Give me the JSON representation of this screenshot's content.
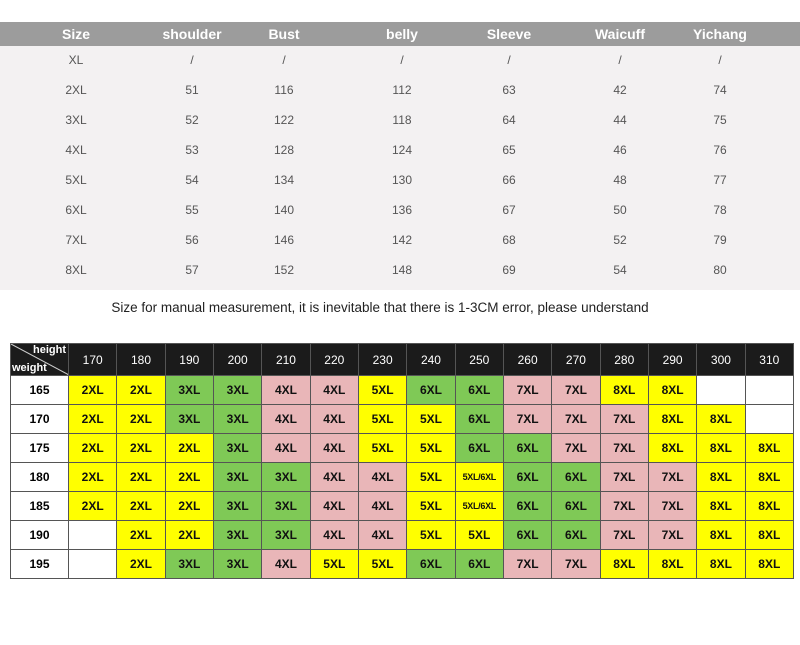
{
  "size_table": {
    "headers": [
      "Size",
      "shoulder",
      "Bust",
      "belly",
      "Sleeve",
      "Waicuff",
      "Yichang"
    ],
    "rows": [
      [
        "XL",
        "/",
        "/",
        "/",
        "/",
        "/",
        "/"
      ],
      [
        "2XL",
        "51",
        "116",
        "112",
        "63",
        "42",
        "74"
      ],
      [
        "3XL",
        "52",
        "122",
        "118",
        "64",
        "44",
        "75"
      ],
      [
        "4XL",
        "53",
        "128",
        "124",
        "65",
        "46",
        "76"
      ],
      [
        "5XL",
        "54",
        "134",
        "130",
        "66",
        "48",
        "77"
      ],
      [
        "6XL",
        "55",
        "140",
        "136",
        "67",
        "50",
        "78"
      ],
      [
        "7XL",
        "56",
        "146",
        "142",
        "68",
        "52",
        "79"
      ],
      [
        "8XL",
        "57",
        "152",
        "148",
        "69",
        "54",
        "80"
      ]
    ]
  },
  "note": "Size for manual measurement, it is inevitable that there is 1-3CM error, please understand",
  "recommendation": {
    "corner_top": "height",
    "corner_bottom": "weight",
    "columns": [
      "170",
      "180",
      "190",
      "200",
      "210",
      "220",
      "230",
      "240",
      "250",
      "260",
      "270",
      "280",
      "290",
      "300",
      "310"
    ],
    "colors": {
      "yellow": "#ffff00",
      "green": "#7fc956",
      "pink": "#e9b6b8",
      "empty": "#ffffff"
    },
    "rows": [
      {
        "height": "165",
        "cells": [
          {
            "v": "2XL",
            "c": "yellow"
          },
          {
            "v": "2XL",
            "c": "yellow"
          },
          {
            "v": "3XL",
            "c": "green"
          },
          {
            "v": "3XL",
            "c": "green"
          },
          {
            "v": "4XL",
            "c": "pink"
          },
          {
            "v": "4XL",
            "c": "pink"
          },
          {
            "v": "5XL",
            "c": "yellow"
          },
          {
            "v": "6XL",
            "c": "green"
          },
          {
            "v": "6XL",
            "c": "green"
          },
          {
            "v": "7XL",
            "c": "pink"
          },
          {
            "v": "7XL",
            "c": "pink"
          },
          {
            "v": "8XL",
            "c": "yellow"
          },
          {
            "v": "8XL",
            "c": "yellow"
          },
          {
            "v": "",
            "c": "empty"
          },
          {
            "v": "",
            "c": "empty"
          }
        ]
      },
      {
        "height": "170",
        "cells": [
          {
            "v": "2XL",
            "c": "yellow"
          },
          {
            "v": "2XL",
            "c": "yellow"
          },
          {
            "v": "3XL",
            "c": "green"
          },
          {
            "v": "3XL",
            "c": "green"
          },
          {
            "v": "4XL",
            "c": "pink"
          },
          {
            "v": "4XL",
            "c": "pink"
          },
          {
            "v": "5XL",
            "c": "yellow"
          },
          {
            "v": "5XL",
            "c": "yellow"
          },
          {
            "v": "6XL",
            "c": "green"
          },
          {
            "v": "7XL",
            "c": "pink"
          },
          {
            "v": "7XL",
            "c": "pink"
          },
          {
            "v": "7XL",
            "c": "pink"
          },
          {
            "v": "8XL",
            "c": "yellow"
          },
          {
            "v": "8XL",
            "c": "yellow"
          },
          {
            "v": "",
            "c": "empty"
          }
        ]
      },
      {
        "height": "175",
        "cells": [
          {
            "v": "2XL",
            "c": "yellow"
          },
          {
            "v": "2XL",
            "c": "yellow"
          },
          {
            "v": "2XL",
            "c": "yellow"
          },
          {
            "v": "3XL",
            "c": "green"
          },
          {
            "v": "4XL",
            "c": "pink"
          },
          {
            "v": "4XL",
            "c": "pink"
          },
          {
            "v": "5XL",
            "c": "yellow"
          },
          {
            "v": "5XL",
            "c": "yellow"
          },
          {
            "v": "6XL",
            "c": "green"
          },
          {
            "v": "6XL",
            "c": "green"
          },
          {
            "v": "7XL",
            "c": "pink"
          },
          {
            "v": "7XL",
            "c": "pink"
          },
          {
            "v": "8XL",
            "c": "yellow"
          },
          {
            "v": "8XL",
            "c": "yellow"
          },
          {
            "v": "8XL",
            "c": "yellow"
          }
        ]
      },
      {
        "height": "180",
        "cells": [
          {
            "v": "2XL",
            "c": "yellow"
          },
          {
            "v": "2XL",
            "c": "yellow"
          },
          {
            "v": "2XL",
            "c": "yellow"
          },
          {
            "v": "3XL",
            "c": "green"
          },
          {
            "v": "3XL",
            "c": "green"
          },
          {
            "v": "4XL",
            "c": "pink"
          },
          {
            "v": "4XL",
            "c": "pink"
          },
          {
            "v": "5XL",
            "c": "yellow"
          },
          {
            "v": "5XL/6XL",
            "c": "yellow",
            "small": true
          },
          {
            "v": "6XL",
            "c": "green"
          },
          {
            "v": "6XL",
            "c": "green"
          },
          {
            "v": "7XL",
            "c": "pink"
          },
          {
            "v": "7XL",
            "c": "pink"
          },
          {
            "v": "8XL",
            "c": "yellow"
          },
          {
            "v": "8XL",
            "c": "yellow"
          }
        ]
      },
      {
        "height": "185",
        "cells": [
          {
            "v": "2XL",
            "c": "yellow"
          },
          {
            "v": "2XL",
            "c": "yellow"
          },
          {
            "v": "2XL",
            "c": "yellow"
          },
          {
            "v": "3XL",
            "c": "green"
          },
          {
            "v": "3XL",
            "c": "green"
          },
          {
            "v": "4XL",
            "c": "pink"
          },
          {
            "v": "4XL",
            "c": "pink"
          },
          {
            "v": "5XL",
            "c": "yellow"
          },
          {
            "v": "5XL/6XL",
            "c": "yellow",
            "small": true
          },
          {
            "v": "6XL",
            "c": "green"
          },
          {
            "v": "6XL",
            "c": "green"
          },
          {
            "v": "7XL",
            "c": "pink"
          },
          {
            "v": "7XL",
            "c": "pink"
          },
          {
            "v": "8XL",
            "c": "yellow"
          },
          {
            "v": "8XL",
            "c": "yellow"
          }
        ]
      },
      {
        "height": "190",
        "cells": [
          {
            "v": "",
            "c": "empty"
          },
          {
            "v": "2XL",
            "c": "yellow"
          },
          {
            "v": "2XL",
            "c": "yellow"
          },
          {
            "v": "3XL",
            "c": "green"
          },
          {
            "v": "3XL",
            "c": "green"
          },
          {
            "v": "4XL",
            "c": "pink"
          },
          {
            "v": "4XL",
            "c": "pink"
          },
          {
            "v": "5XL",
            "c": "yellow"
          },
          {
            "v": "5XL",
            "c": "yellow"
          },
          {
            "v": "6XL",
            "c": "green"
          },
          {
            "v": "6XL",
            "c": "green"
          },
          {
            "v": "7XL",
            "c": "pink"
          },
          {
            "v": "7XL",
            "c": "pink"
          },
          {
            "v": "8XL",
            "c": "yellow"
          },
          {
            "v": "8XL",
            "c": "yellow"
          }
        ]
      },
      {
        "height": "195",
        "cells": [
          {
            "v": "",
            "c": "empty"
          },
          {
            "v": "2XL",
            "c": "yellow"
          },
          {
            "v": "3XL",
            "c": "green"
          },
          {
            "v": "3XL",
            "c": "green"
          },
          {
            "v": "4XL",
            "c": "pink"
          },
          {
            "v": "5XL",
            "c": "yellow"
          },
          {
            "v": "5XL",
            "c": "yellow"
          },
          {
            "v": "6XL",
            "c": "green"
          },
          {
            "v": "6XL",
            "c": "green"
          },
          {
            "v": "7XL",
            "c": "pink"
          },
          {
            "v": "7XL",
            "c": "pink"
          },
          {
            "v": "8XL",
            "c": "yellow"
          },
          {
            "v": "8XL",
            "c": "yellow"
          },
          {
            "v": "8XL",
            "c": "yellow"
          },
          {
            "v": "8XL",
            "c": "yellow"
          }
        ]
      }
    ]
  }
}
